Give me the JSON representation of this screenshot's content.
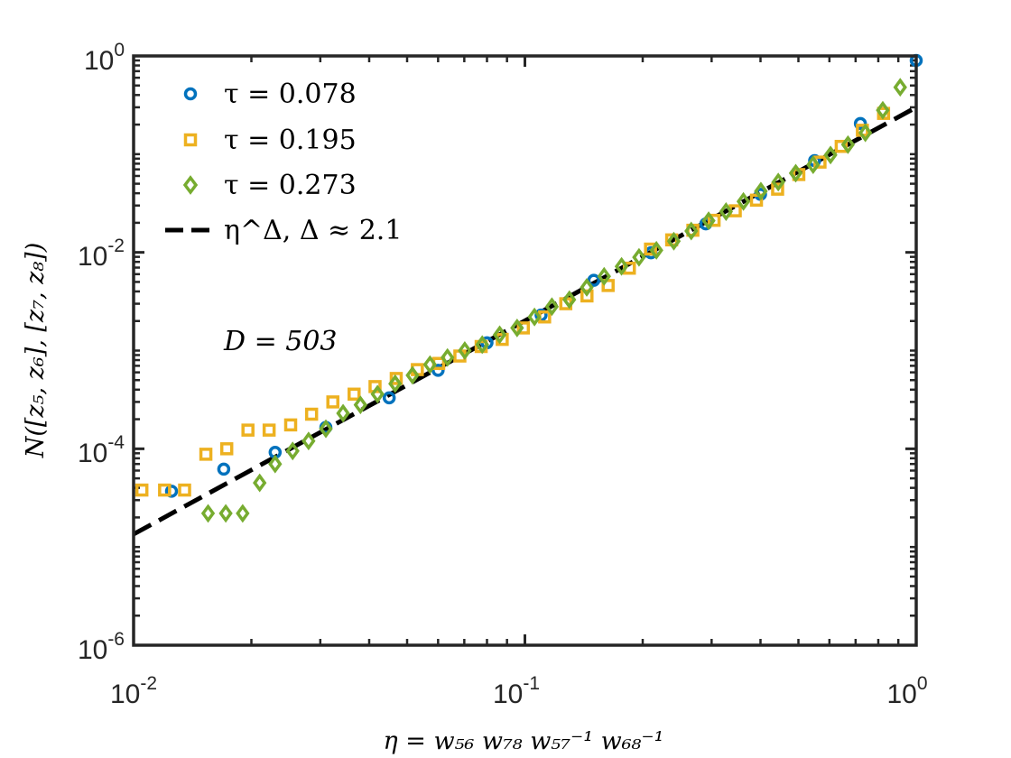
{
  "chart_data": {
    "type": "scatter",
    "x_scale": "log",
    "y_scale": "log",
    "xlim": [
      0.01,
      1
    ],
    "ylim": [
      1e-06,
      1
    ],
    "xlabel": "η = w₅₆ w₇₈ w₅₇⁻¹ w₆₈⁻¹",
    "ylabel": "N([z₅, z₆], [z₇, z₈])",
    "x_ticks": [
      {
        "base": "10",
        "exp": "-2",
        "value": 0.01
      },
      {
        "base": "10",
        "exp": "-1",
        "value": 0.1
      },
      {
        "base": "10",
        "exp": "0",
        "value": 1
      }
    ],
    "y_ticks": [
      {
        "base": "10",
        "exp": "-6",
        "value": 1e-06
      },
      {
        "base": "10",
        "exp": "-4",
        "value": 0.0001
      },
      {
        "base": "10",
        "exp": "-2",
        "value": 0.01
      },
      {
        "base": "10",
        "exp": "0",
        "value": 1
      }
    ],
    "annotation": "D = 503",
    "legend_position": "top-left",
    "series": [
      {
        "name": "τ = 0.078",
        "marker": "circle",
        "color": "#0072BD",
        "x": [
          0.0125,
          0.017,
          0.023,
          0.031,
          0.045,
          0.06,
          0.08,
          0.11,
          0.15,
          0.21,
          0.29,
          0.4,
          0.55,
          0.72,
          1.0
        ],
        "y": [
          3.7e-05,
          6.2e-05,
          9.2e-05,
          0.000165,
          0.00033,
          0.00063,
          0.0012,
          0.0023,
          0.0052,
          0.0099,
          0.0195,
          0.039,
          0.086,
          0.205,
          0.9
        ]
      },
      {
        "name": "τ = 0.195",
        "marker": "square",
        "color": "#EDB120",
        "x": [
          0.0105,
          0.012,
          0.0135,
          0.0153,
          0.0173,
          0.0196,
          0.0222,
          0.0252,
          0.0285,
          0.0323,
          0.0366,
          0.0414,
          0.0469,
          0.0531,
          0.0602,
          0.0682,
          0.0773,
          0.0875,
          0.0991,
          0.1123,
          0.1272,
          0.1441,
          0.1632,
          0.1849,
          0.2094,
          0.2372,
          0.2687,
          0.3044,
          0.3448,
          0.3906,
          0.4424,
          0.5012,
          0.5677,
          0.6431,
          0.7285,
          0.8252
        ],
        "y": [
          3.8e-05,
          3.8e-05,
          3.8e-05,
          8.8e-05,
          0.0001,
          0.000155,
          0.000155,
          0.000175,
          0.000225,
          0.0003,
          0.00036,
          0.00043,
          0.00052,
          0.00064,
          0.00074,
          0.00088,
          0.0011,
          0.0013,
          0.0017,
          0.0022,
          0.003,
          0.0036,
          0.0046,
          0.0069,
          0.0108,
          0.0134,
          0.0168,
          0.0212,
          0.0265,
          0.034,
          0.044,
          0.062,
          0.083,
          0.12,
          0.175,
          0.26
        ]
      },
      {
        "name": "τ = 0.273",
        "marker": "diamond",
        "color": "#77AC30",
        "x": [
          0.0155,
          0.0172,
          0.019,
          0.021,
          0.023,
          0.0255,
          0.028,
          0.031,
          0.0343,
          0.038,
          0.042,
          0.0466,
          0.0516,
          0.0572,
          0.0634,
          0.0702,
          0.0778,
          0.0862,
          0.0955,
          0.1058,
          0.1172,
          0.1299,
          0.1439,
          0.1594,
          0.1766,
          0.1957,
          0.2168,
          0.2402,
          0.2661,
          0.2948,
          0.3266,
          0.3618,
          0.4009,
          0.4441,
          0.4921,
          0.5452,
          0.604,
          0.6692,
          0.7414,
          0.8214,
          0.91
        ],
        "y": [
          2.2e-05,
          2.2e-05,
          2.2e-05,
          4.5e-05,
          7e-05,
          9.5e-05,
          0.00012,
          0.00016,
          0.00023,
          0.00028,
          0.00036,
          0.00046,
          0.00056,
          0.00072,
          0.00085,
          0.001,
          0.00115,
          0.00145,
          0.0017,
          0.0022,
          0.0028,
          0.0033,
          0.0044,
          0.0057,
          0.0072,
          0.0089,
          0.0105,
          0.013,
          0.0165,
          0.021,
          0.026,
          0.033,
          0.042,
          0.052,
          0.064,
          0.078,
          0.098,
          0.125,
          0.165,
          0.28,
          0.48
        ]
      },
      {
        "name": "η^Δ, Δ ≈ 2.1",
        "marker": "dashed-line",
        "color": "#000000",
        "x": [
          0.01,
          1
        ],
        "y": [
          1.35e-05,
          0.3
        ]
      }
    ],
    "legend_labels": {
      "tau1": "τ = 0.078",
      "tau2": "τ = 0.195",
      "tau3": "τ = 0.273",
      "fit": "η^Δ,  Δ ≈ 2.1"
    }
  }
}
